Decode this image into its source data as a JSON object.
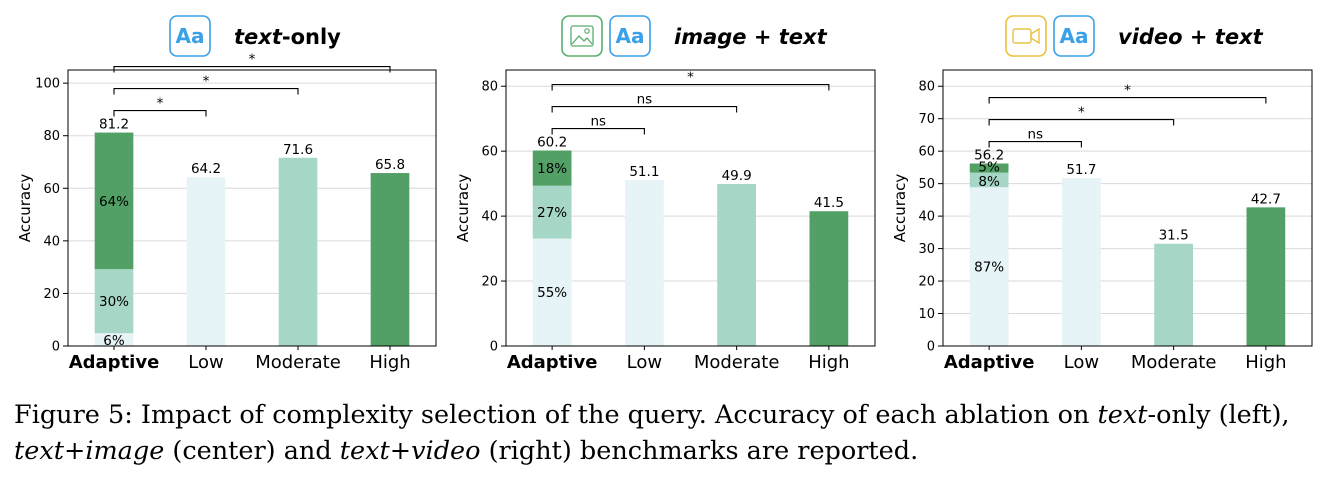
{
  "colors": {
    "low": "#e6f3f7",
    "moderate": "#a6d6c6",
    "high": "#52a066",
    "grid": "#d9d9d9",
    "bracket": "#000000",
    "aa_icon": "#3aa0e8",
    "image_icon": "#5bae6e",
    "video_icon": "#e8c240"
  },
  "panels": [
    {
      "header": {
        "icons": [
          "text-icon"
        ],
        "title_italic": "text",
        "title_rest": "-only"
      },
      "chart_data": {
        "type": "bar",
        "ylabel": "Accuracy",
        "ylim": [
          0,
          105
        ],
        "yticks": [
          0,
          20,
          40,
          60,
          80,
          100
        ],
        "categories": [
          "Adaptive",
          "Low",
          "Moderate",
          "High"
        ],
        "values": [
          81.2,
          64.2,
          71.6,
          65.8
        ],
        "value_labels": [
          "81.2",
          "64.2",
          "71.6",
          "65.8"
        ],
        "adaptive_breakdown": [
          {
            "level": "low",
            "share": 6,
            "label": "6%"
          },
          {
            "level": "moderate",
            "share": 30,
            "label": "30%"
          },
          {
            "level": "high",
            "share": 64,
            "label": "64%"
          }
        ],
        "significance": [
          {
            "from": "Adaptive",
            "to": "Low",
            "label": "*"
          },
          {
            "from": "Adaptive",
            "to": "Moderate",
            "label": "*"
          },
          {
            "from": "Adaptive",
            "to": "High",
            "label": "*"
          }
        ],
        "grid": true
      }
    },
    {
      "header": {
        "icons": [
          "image-icon",
          "text-icon"
        ],
        "title_italic": "image + text",
        "title_rest": ""
      },
      "chart_data": {
        "type": "bar",
        "ylabel": "Accuracy",
        "ylim": [
          0,
          85
        ],
        "yticks": [
          0,
          20,
          40,
          60,
          80
        ],
        "categories": [
          "Adaptive",
          "Low",
          "Moderate",
          "High"
        ],
        "values": [
          60.2,
          51.1,
          49.9,
          41.5
        ],
        "value_labels": [
          "60.2",
          "51.1",
          "49.9",
          "41.5"
        ],
        "adaptive_breakdown": [
          {
            "level": "low",
            "share": 55,
            "label": "55%"
          },
          {
            "level": "moderate",
            "share": 27,
            "label": "27%"
          },
          {
            "level": "high",
            "share": 18,
            "label": "18%"
          }
        ],
        "significance": [
          {
            "from": "Adaptive",
            "to": "Low",
            "label": "ns"
          },
          {
            "from": "Adaptive",
            "to": "Moderate",
            "label": "ns"
          },
          {
            "from": "Adaptive",
            "to": "High",
            "label": "*"
          }
        ],
        "grid": true
      }
    },
    {
      "header": {
        "icons": [
          "video-icon",
          "text-icon"
        ],
        "title_italic": "video + text",
        "title_rest": ""
      },
      "chart_data": {
        "type": "bar",
        "ylabel": "Accuracy",
        "ylim": [
          0,
          85
        ],
        "yticks": [
          0,
          10,
          20,
          30,
          40,
          50,
          60,
          70,
          80
        ],
        "categories": [
          "Adaptive",
          "Low",
          "Moderate",
          "High"
        ],
        "values": [
          56.2,
          51.7,
          31.5,
          42.7
        ],
        "value_labels": [
          "56.2",
          "51.7",
          "31.5",
          "42.7"
        ],
        "adaptive_breakdown": [
          {
            "level": "low",
            "share": 87,
            "label": "87%"
          },
          {
            "level": "moderate",
            "share": 8,
            "label": "8%"
          },
          {
            "level": "high",
            "share": 5,
            "label": "5%"
          }
        ],
        "significance": [
          {
            "from": "Adaptive",
            "to": "Low",
            "label": "ns"
          },
          {
            "from": "Adaptive",
            "to": "Moderate",
            "label": "*"
          },
          {
            "from": "Adaptive",
            "to": "High",
            "label": "*"
          }
        ],
        "grid": true
      }
    }
  ],
  "icon_text": "Aa",
  "caption": {
    "p1": "Figure 5: Impact of complexity selection of the query. Accuracy of each ablation on ",
    "i1": "text",
    "p2": "-only (left),",
    "i2": "text+image",
    "p3": " (center) and ",
    "i3": "text+video",
    "p4": " (right) benchmarks are reported."
  }
}
